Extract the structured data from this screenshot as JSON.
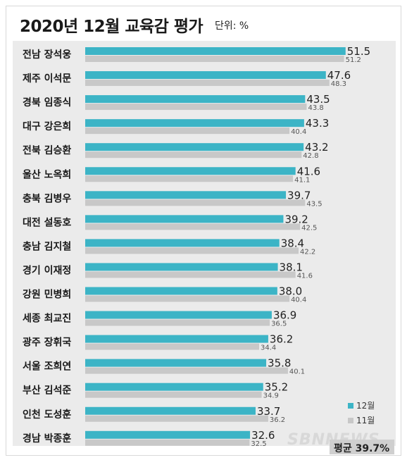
{
  "title": "2020년 12월 교육감 평가",
  "unit": "단위: %",
  "average": "평균 39.7%",
  "watermark": "SBNNEWS",
  "colors": {
    "dec": "#3cb4c6",
    "nov": "#c8c8c8",
    "background": "#ebebeb"
  },
  "chart_data": {
    "type": "bar",
    "orientation": "horizontal",
    "title": "2020년 12월 교육감 평가",
    "unit": "단위: %",
    "categories": [
      "전남 장석웅",
      "제주 이석문",
      "경북 임종식",
      "대구 강은희",
      "전북 김승환",
      "울산 노옥희",
      "충북 김병우",
      "대전 설동호",
      "충남 김지철",
      "경기 이재정",
      "강원 민병희",
      "세종 최교진",
      "광주 장휘국",
      "서울 조희연",
      "부산 김석준",
      "인천 도성훈",
      "경남 박종훈"
    ],
    "series": [
      {
        "name": "12월",
        "color": "#3cb4c6",
        "values": [
          51.5,
          47.6,
          43.5,
          43.3,
          43.2,
          41.6,
          39.7,
          39.2,
          38.4,
          38.1,
          38.0,
          36.9,
          36.2,
          35.8,
          35.2,
          33.7,
          32.6
        ]
      },
      {
        "name": "11월",
        "color": "#c8c8c8",
        "values": [
          51.2,
          48.3,
          43.8,
          40.4,
          42.8,
          41.1,
          43.5,
          42.5,
          42.2,
          41.6,
          40.4,
          36.5,
          34.4,
          40.1,
          34.9,
          36.2,
          32.5
        ]
      }
    ],
    "value_labels": {
      "dec": [
        "51.5",
        "47.6",
        "43.5",
        "43.3",
        "43.2",
        "41.6",
        "39.7",
        "39.2",
        "38.4",
        "38.1",
        "38.0",
        "36.9",
        "36.2",
        "35.8",
        "35.2",
        "33.7",
        "32.6"
      ],
      "nov": [
        "51.2",
        "48.3",
        "43.8",
        "40.4",
        "42.8",
        "41.1",
        "43.5",
        "42.5",
        "42.2",
        "41.6",
        "40.4",
        "36.5",
        "34.4",
        "40.1",
        "34.9",
        "36.2",
        "32.5"
      ]
    },
    "legend": {
      "placement": "bottom-right",
      "entries": [
        "12월",
        "11월"
      ]
    },
    "grid": false
  }
}
